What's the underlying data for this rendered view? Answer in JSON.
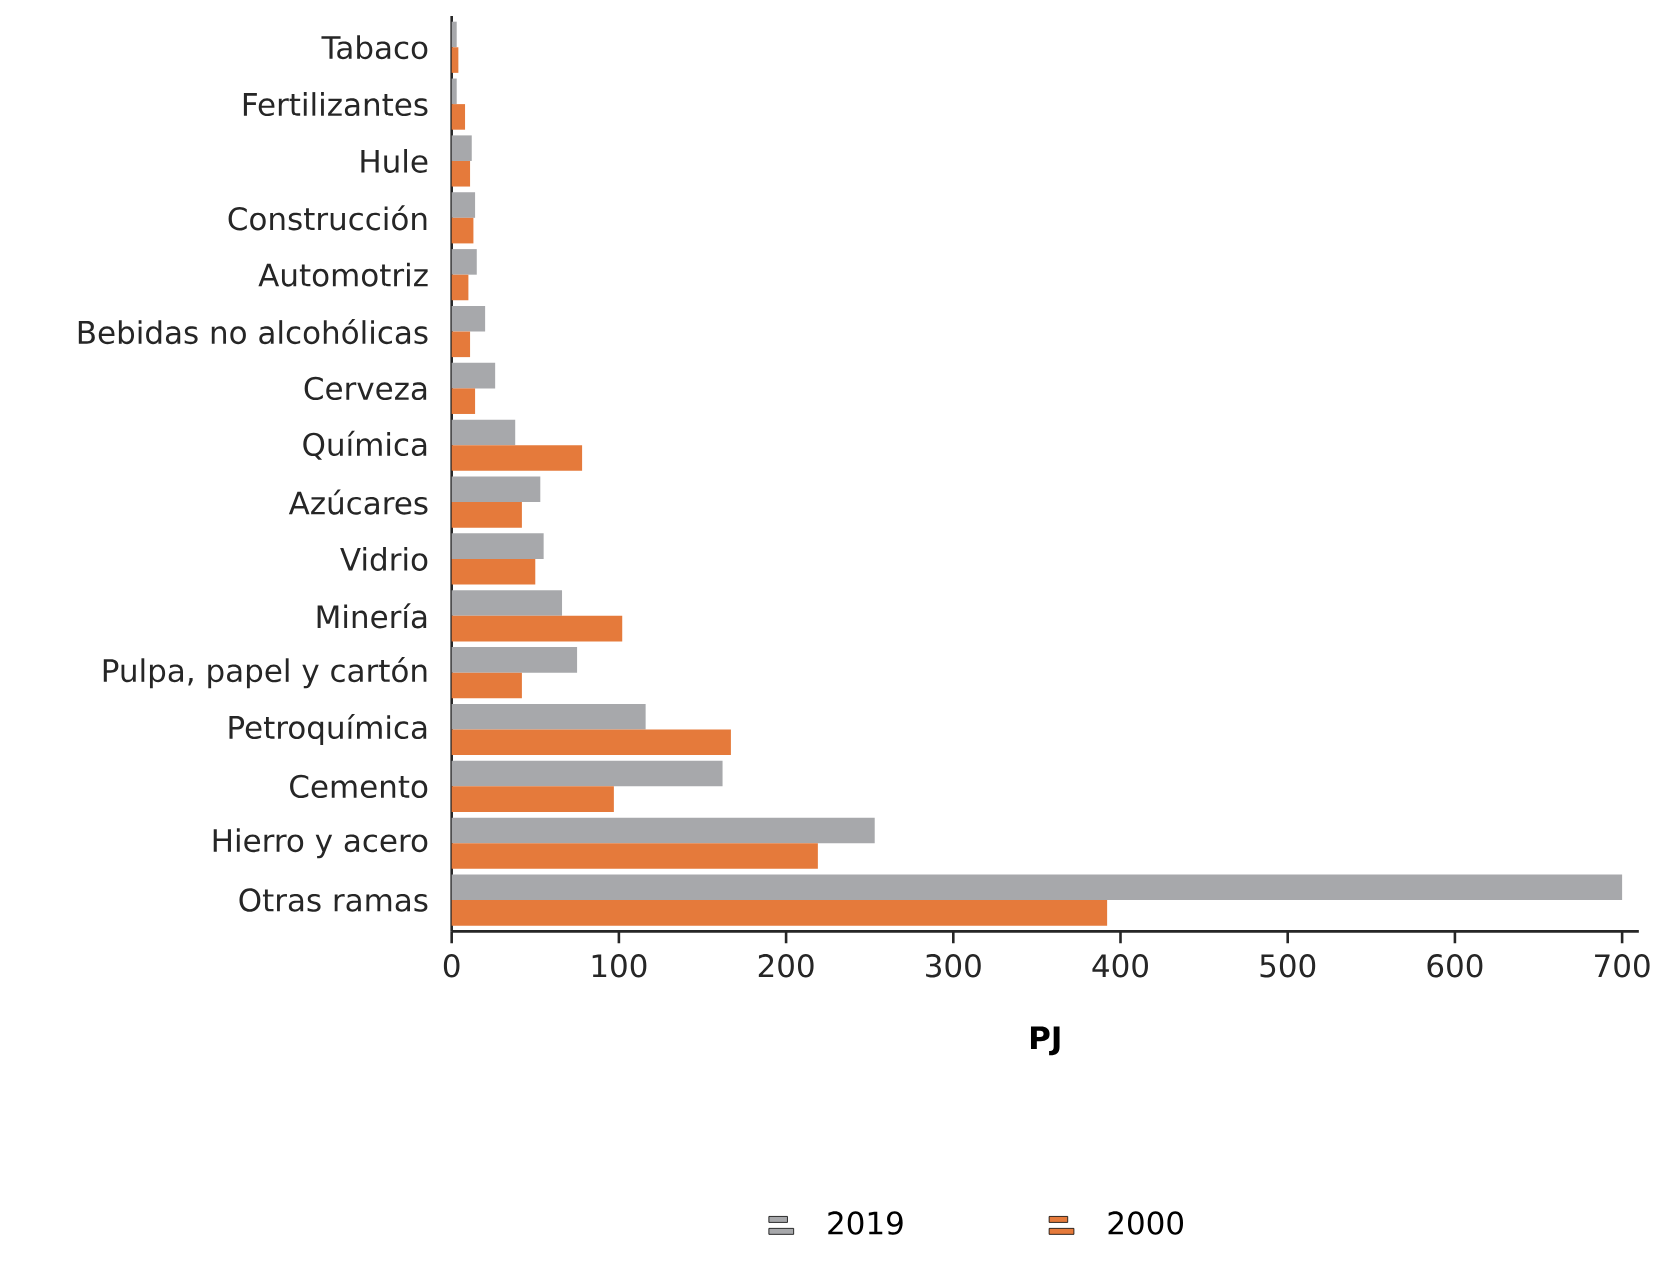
{
  "chart_data": {
    "type": "bar",
    "orientation": "horizontal",
    "xlabel": "PJ",
    "categories": [
      "Tabaco",
      "Fertilizantes",
      "Hule",
      "Construcción",
      "Automotriz",
      "Bebidas no alcohólicas",
      "Cerveza",
      "Química",
      "Azúcares",
      "Vidrio",
      "Minería",
      "Pulpa, papel y cartón",
      "Petroquímica",
      "Cemento",
      "Hierro y acero",
      "Otras ramas"
    ],
    "series": [
      {
        "name": "2019",
        "color": "#a7a8ab",
        "values": [
          3,
          3,
          12,
          14,
          15,
          20,
          26,
          38,
          53,
          55,
          66,
          75,
          116,
          162,
          253,
          700
        ]
      },
      {
        "name": "2000",
        "color": "#e57a3b",
        "values": [
          4,
          8,
          11,
          13,
          10,
          11,
          14,
          78,
          42,
          50,
          102,
          42,
          167,
          97,
          219,
          392
        ]
      }
    ],
    "xlim": [
      0,
      710
    ],
    "xticks": [
      0,
      100,
      200,
      300,
      400,
      500,
      600,
      700
    ],
    "legend": "bottom",
    "grid": false
  }
}
